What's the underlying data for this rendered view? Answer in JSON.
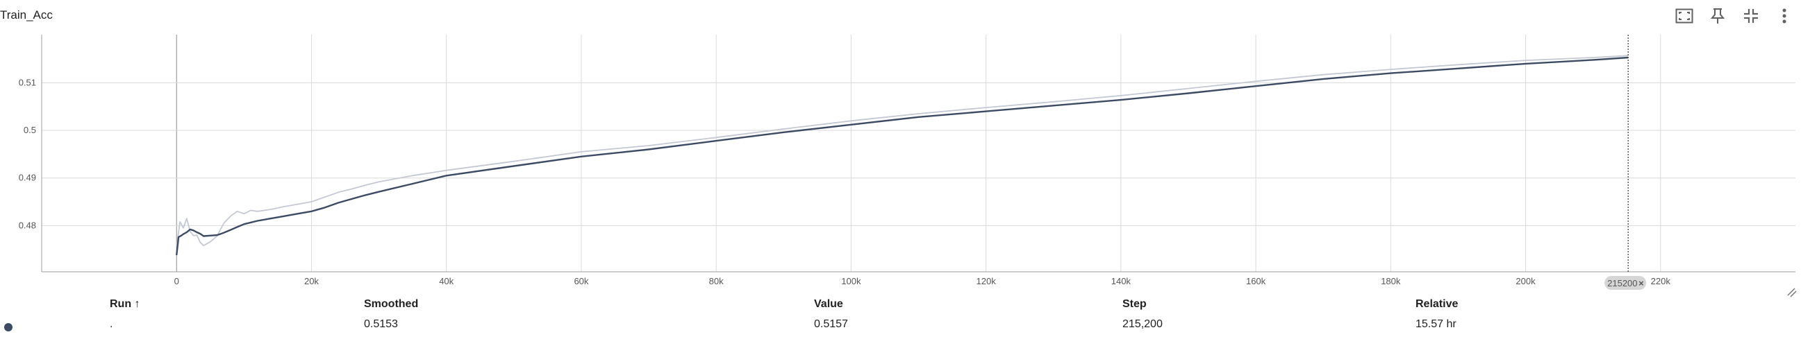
{
  "title": "Train_Acc",
  "toolbar": {
    "icons": [
      "fit-to-data-icon",
      "pin-icon",
      "collapse-icon",
      "more-vert-icon"
    ]
  },
  "colors": {
    "smoothed": "#3d4a63",
    "raw": "#c3c8d3",
    "grid": "#dadada",
    "axis": "#9e9e9e",
    "run": "#3d4a63"
  },
  "hover": {
    "step_label": "215200",
    "close": "×"
  },
  "chart_data": {
    "type": "line",
    "title": "",
    "xlabel": "",
    "ylabel": "",
    "xlim": [
      -20000,
      240000
    ],
    "ylim": [
      0.4703,
      0.5201
    ],
    "x_ticks": [
      0,
      20000,
      40000,
      60000,
      80000,
      100000,
      120000,
      140000,
      160000,
      180000,
      200000,
      220000
    ],
    "x_tick_labels": [
      "0",
      "20k",
      "40k",
      "60k",
      "80k",
      "100k",
      "120k",
      "140k",
      "160k",
      "180k",
      "200k",
      "220k"
    ],
    "y_ticks": [
      0.48,
      0.49,
      0.5,
      0.51
    ],
    "y_tick_labels": [
      "0.48",
      "0.49",
      "0.5",
      "0.51"
    ],
    "grid": true,
    "hover_step": 215200,
    "series": [
      {
        "role": "raw",
        "x": [
          0,
          500,
          1000,
          1500,
          2000,
          2500,
          3000,
          3500,
          4000,
          5000,
          6000,
          7000,
          8000,
          9000,
          10000,
          11000,
          12000,
          14000,
          16000,
          18000,
          20000,
          22000,
          24000,
          26000,
          28000,
          30000,
          35000,
          40000,
          50000,
          60000,
          70000,
          80000,
          90000,
          100000,
          110000,
          120000,
          130000,
          140000,
          150000,
          160000,
          170000,
          180000,
          190000,
          200000,
          210000,
          215200
        ],
        "y": [
          0.4755,
          0.4808,
          0.4795,
          0.4815,
          0.4788,
          0.4779,
          0.478,
          0.4765,
          0.4758,
          0.4766,
          0.4778,
          0.4805,
          0.482,
          0.483,
          0.4825,
          0.4832,
          0.483,
          0.4834,
          0.484,
          0.4845,
          0.485,
          0.486,
          0.487,
          0.4877,
          0.4885,
          0.4892,
          0.4905,
          0.4916,
          0.4935,
          0.4955,
          0.4968,
          0.4985,
          0.5003,
          0.502,
          0.5035,
          0.5048,
          0.506,
          0.5073,
          0.5088,
          0.5103,
          0.5117,
          0.5128,
          0.5138,
          0.5147,
          0.5153,
          0.5157
        ]
      },
      {
        "role": "smoothed",
        "x": [
          0,
          300,
          700,
          1000,
          1500,
          2000,
          2500,
          3000,
          3500,
          4000,
          5000,
          6000,
          7000,
          8000,
          9000,
          10000,
          12000,
          14000,
          16000,
          18000,
          20000,
          22000,
          24000,
          26000,
          28000,
          30000,
          35000,
          40000,
          50000,
          60000,
          70000,
          80000,
          90000,
          100000,
          110000,
          120000,
          130000,
          140000,
          150000,
          160000,
          170000,
          180000,
          190000,
          200000,
          210000,
          215200
        ],
        "y": [
          0.4738,
          0.4776,
          0.4779,
          0.4782,
          0.4786,
          0.4792,
          0.479,
          0.4786,
          0.4783,
          0.4778,
          0.4779,
          0.478,
          0.4785,
          0.4791,
          0.4797,
          0.4803,
          0.481,
          0.4815,
          0.482,
          0.4825,
          0.483,
          0.4838,
          0.4848,
          0.4856,
          0.4864,
          0.4871,
          0.4888,
          0.4905,
          0.4925,
          0.4945,
          0.496,
          0.4978,
          0.4996,
          0.5012,
          0.5028,
          0.504,
          0.5052,
          0.5064,
          0.5078,
          0.5093,
          0.5108,
          0.512,
          0.513,
          0.514,
          0.5148,
          0.5153
        ]
      }
    ]
  },
  "table": {
    "headers": {
      "run": "Run ↑",
      "smoothed": "Smoothed",
      "value": "Value",
      "step": "Step",
      "relative": "Relative"
    },
    "rows": [
      {
        "run": ".",
        "smoothed": "0.5153",
        "value": "0.5157",
        "step": "215,200",
        "relative": "15.57 hr"
      }
    ]
  }
}
